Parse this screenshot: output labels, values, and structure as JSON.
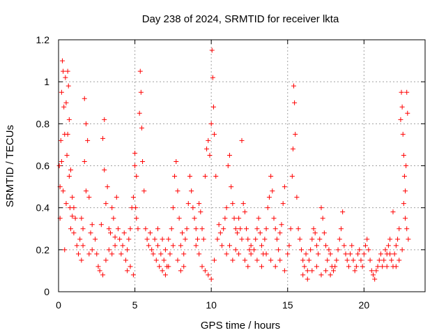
{
  "chart_data": {
    "type": "scatter",
    "title": "Day 238 of 2024, SRMTID for receiver lkta",
    "xlabel": "GPS time / hours",
    "ylabel": "SRMTID / TECUs",
    "xlim": [
      0,
      24
    ],
    "ylim": [
      0,
      1.2
    ],
    "xticks": [
      0,
      5,
      10,
      15,
      20
    ],
    "xtick_labels": [
      "0",
      "5",
      "10",
      "15",
      "20"
    ],
    "yticks": [
      0,
      0.2,
      0.4,
      0.6,
      0.8,
      1.0,
      1.2
    ],
    "ytick_labels": [
      "0",
      "0.2",
      "0.4",
      "0.6",
      "0.8",
      "1",
      "1.2"
    ],
    "grid": true,
    "marker": "+",
    "colors": {
      "series": "#ff0000",
      "grid": "#a0a0a0"
    },
    "series": [
      {
        "name": "SRMTID",
        "points": [
          [
            0.05,
            0.6
          ],
          [
            0.1,
            0.35
          ],
          [
            0.15,
            0.72
          ],
          [
            0.2,
            0.95
          ],
          [
            0.25,
            1.1
          ],
          [
            0.3,
            1.05
          ],
          [
            0.35,
            0.88
          ],
          [
            0.4,
            0.75
          ],
          [
            0.45,
            1.02
          ],
          [
            0.5,
            0.9
          ],
          [
            0.55,
            0.65
          ],
          [
            0.6,
            1.05
          ],
          [
            0.65,
            0.98
          ],
          [
            0.7,
            0.55
          ],
          [
            0.75,
            0.4
          ],
          [
            0.8,
            0.3
          ],
          [
            0.9,
            0.45
          ],
          [
            1.0,
            0.28
          ],
          [
            1.1,
            0.35
          ],
          [
            1.2,
            0.22
          ],
          [
            0.1,
            0.5
          ],
          [
            0.2,
            0.62
          ],
          [
            0.3,
            0.48
          ],
          [
            0.4,
            0.2
          ],
          [
            0.5,
            0.42
          ],
          [
            0.6,
            0.75
          ],
          [
            0.7,
            0.82
          ],
          [
            0.8,
            0.58
          ],
          [
            0.9,
            0.36
          ],
          [
            1.0,
            0.4
          ],
          [
            1.3,
            0.18
          ],
          [
            1.4,
            0.25
          ],
          [
            1.5,
            0.15
          ],
          [
            1.6,
            0.3
          ],
          [
            1.7,
            0.92
          ],
          [
            1.8,
            0.8
          ],
          [
            1.9,
            0.72
          ],
          [
            2.0,
            0.45
          ],
          [
            2.1,
            0.28
          ],
          [
            2.2,
            0.32
          ],
          [
            1.5,
            0.35
          ],
          [
            1.6,
            0.22
          ],
          [
            1.7,
            0.62
          ],
          [
            1.8,
            0.48
          ],
          [
            2.0,
            0.18
          ],
          [
            2.2,
            0.2
          ],
          [
            2.4,
            0.25
          ],
          [
            2.6,
            0.12
          ],
          [
            2.8,
            0.32
          ],
          [
            3.0,
            0.82
          ],
          [
            2.9,
            0.73
          ],
          [
            3.0,
            0.58
          ],
          [
            3.1,
            0.42
          ],
          [
            3.2,
            0.5
          ],
          [
            3.3,
            0.3
          ],
          [
            3.4,
            0.28
          ],
          [
            3.5,
            0.4
          ],
          [
            3.6,
            0.35
          ],
          [
            3.7,
            0.22
          ],
          [
            3.8,
            0.45
          ],
          [
            2.5,
            0.18
          ],
          [
            2.7,
            0.1
          ],
          [
            2.9,
            0.08
          ],
          [
            3.1,
            0.15
          ],
          [
            3.3,
            0.2
          ],
          [
            3.5,
            0.18
          ],
          [
            3.7,
            0.26
          ],
          [
            3.9,
            0.3
          ],
          [
            4.0,
            0.25
          ],
          [
            4.1,
            0.18
          ],
          [
            4.2,
            0.22
          ],
          [
            4.3,
            0.28
          ],
          [
            4.4,
            0.15
          ],
          [
            4.5,
            0.2
          ],
          [
            4.6,
            0.25
          ],
          [
            4.7,
            0.3
          ],
          [
            4.8,
            0.4
          ],
          [
            4.9,
            0.45
          ],
          [
            5.0,
            0.6
          ],
          [
            5.1,
            0.55
          ],
          [
            4.5,
            0.1
          ],
          [
            4.7,
            0.12
          ],
          [
            4.9,
            0.08
          ],
          [
            5.0,
            0.66
          ],
          [
            5.05,
            0.4
          ],
          [
            5.1,
            0.35
          ],
          [
            5.2,
            0.3
          ],
          [
            5.3,
            0.85
          ],
          [
            5.35,
            1.05
          ],
          [
            5.4,
            0.95
          ],
          [
            5.45,
            0.78
          ],
          [
            5.5,
            0.62
          ],
          [
            5.6,
            0.48
          ],
          [
            5.7,
            0.3
          ],
          [
            5.8,
            0.25
          ],
          [
            5.9,
            0.22
          ],
          [
            6.0,
            0.28
          ],
          [
            6.1,
            0.2
          ],
          [
            6.2,
            0.18
          ],
          [
            6.3,
            0.25
          ],
          [
            6.4,
            0.15
          ],
          [
            6.5,
            0.22
          ],
          [
            6.6,
            0.12
          ],
          [
            6.7,
            0.18
          ],
          [
            6.8,
            0.1
          ],
          [
            6.9,
            0.15
          ],
          [
            7.0,
            0.2
          ],
          [
            7.1,
            0.12
          ],
          [
            7.2,
            0.25
          ],
          [
            7.3,
            0.18
          ],
          [
            7.4,
            0.3
          ],
          [
            7.5,
            0.4
          ],
          [
            7.6,
            0.55
          ],
          [
            7.7,
            0.62
          ],
          [
            7.8,
            0.48
          ],
          [
            7.9,
            0.35
          ],
          [
            8.0,
            0.22
          ],
          [
            8.1,
            0.28
          ],
          [
            8.2,
            0.18
          ],
          [
            8.3,
            0.25
          ],
          [
            6.5,
            0.3
          ],
          [
            6.8,
            0.25
          ],
          [
            7.0,
            0.08
          ],
          [
            7.2,
            0.12
          ],
          [
            7.5,
            0.22
          ],
          [
            7.8,
            0.15
          ],
          [
            8.0,
            0.1
          ],
          [
            8.2,
            0.12
          ],
          [
            8.4,
            0.3
          ],
          [
            8.5,
            0.42
          ],
          [
            8.6,
            0.55
          ],
          [
            8.7,
            0.48
          ],
          [
            8.8,
            0.4
          ],
          [
            8.9,
            0.35
          ],
          [
            9.0,
            0.3
          ],
          [
            9.1,
            0.25
          ],
          [
            9.2,
            0.42
          ],
          [
            9.3,
            0.38
          ],
          [
            9.4,
            0.3
          ],
          [
            9.5,
            0.25
          ],
          [
            9.6,
            0.55
          ],
          [
            9.7,
            0.68
          ],
          [
            9.8,
            0.72
          ],
          [
            9.9,
            0.65
          ],
          [
            10.0,
            0.8
          ],
          [
            10.05,
            1.15
          ],
          [
            10.1,
            1.02
          ],
          [
            10.15,
            0.88
          ],
          [
            10.2,
            0.75
          ],
          [
            10.3,
            0.55
          ],
          [
            9.0,
            0.22
          ],
          [
            9.2,
            0.18
          ],
          [
            9.4,
            0.12
          ],
          [
            9.6,
            0.1
          ],
          [
            9.8,
            0.08
          ],
          [
            10.0,
            0.06
          ],
          [
            10.2,
            0.15
          ],
          [
            10.4,
            0.25
          ],
          [
            10.5,
            0.32
          ],
          [
            10.6,
            0.28
          ],
          [
            10.7,
            0.22
          ],
          [
            10.8,
            0.3
          ],
          [
            10.9,
            0.35
          ],
          [
            11.0,
            0.4
          ],
          [
            11.1,
            0.6
          ],
          [
            11.2,
            0.65
          ],
          [
            11.3,
            0.5
          ],
          [
            11.4,
            0.42
          ],
          [
            11.5,
            0.35
          ],
          [
            11.6,
            0.3
          ],
          [
            11.7,
            0.28
          ],
          [
            11.8,
            0.35
          ],
          [
            11.9,
            0.3
          ],
          [
            12.0,
            0.72
          ],
          [
            12.1,
            0.42
          ],
          [
            12.2,
            0.38
          ],
          [
            12.3,
            0.3
          ],
          [
            12.4,
            0.25
          ],
          [
            12.5,
            0.2
          ],
          [
            12.6,
            0.22
          ],
          [
            11.0,
            0.18
          ],
          [
            11.2,
            0.22
          ],
          [
            11.4,
            0.15
          ],
          [
            11.6,
            0.2
          ],
          [
            11.8,
            0.18
          ],
          [
            12.0,
            0.25
          ],
          [
            12.2,
            0.15
          ],
          [
            12.4,
            0.12
          ],
          [
            12.6,
            0.18
          ],
          [
            12.8,
            0.2
          ],
          [
            12.9,
            0.25
          ],
          [
            13.0,
            0.3
          ],
          [
            13.1,
            0.35
          ],
          [
            13.2,
            0.28
          ],
          [
            13.3,
            0.22
          ],
          [
            13.4,
            0.18
          ],
          [
            13.5,
            0.25
          ],
          [
            13.6,
            0.3
          ],
          [
            13.7,
            0.4
          ],
          [
            13.8,
            0.45
          ],
          [
            13.9,
            0.55
          ],
          [
            14.0,
            0.48
          ],
          [
            14.1,
            0.35
          ],
          [
            14.2,
            0.3
          ],
          [
            14.3,
            0.25
          ],
          [
            14.4,
            0.2
          ],
          [
            14.5,
            0.28
          ],
          [
            14.6,
            0.32
          ],
          [
            14.7,
            0.42
          ],
          [
            14.8,
            0.5
          ],
          [
            13.0,
            0.15
          ],
          [
            13.3,
            0.12
          ],
          [
            13.6,
            0.18
          ],
          [
            13.9,
            0.15
          ],
          [
            14.2,
            0.12
          ],
          [
            14.5,
            0.15
          ],
          [
            14.8,
            0.1
          ],
          [
            15.0,
            0.18
          ],
          [
            15.1,
            0.22
          ],
          [
            15.2,
            0.3
          ],
          [
            15.3,
            0.55
          ],
          [
            15.35,
            0.68
          ],
          [
            15.4,
            0.98
          ],
          [
            15.45,
            0.9
          ],
          [
            15.5,
            0.75
          ],
          [
            15.6,
            0.45
          ],
          [
            15.7,
            0.3
          ],
          [
            15.8,
            0.25
          ],
          [
            15.9,
            0.2
          ],
          [
            16.0,
            0.15
          ],
          [
            16.1,
            0.12
          ],
          [
            16.2,
            0.18
          ],
          [
            16.3,
            0.1
          ],
          [
            16.4,
            0.15
          ],
          [
            16.5,
            0.2
          ],
          [
            16.6,
            0.25
          ],
          [
            16.7,
            0.3
          ],
          [
            16.8,
            0.28
          ],
          [
            16.9,
            0.22
          ],
          [
            17.0,
            0.18
          ],
          [
            17.1,
            0.25
          ],
          [
            17.2,
            0.4
          ],
          [
            17.3,
            0.35
          ],
          [
            17.4,
            0.28
          ],
          [
            17.5,
            0.22
          ],
          [
            17.6,
            0.15
          ],
          [
            17.7,
            0.2
          ],
          [
            17.8,
            0.18
          ],
          [
            17.9,
            0.12
          ],
          [
            18.0,
            0.1
          ],
          [
            16.0,
            0.08
          ],
          [
            16.3,
            0.06
          ],
          [
            16.6,
            0.1
          ],
          [
            16.9,
            0.12
          ],
          [
            17.2,
            0.08
          ],
          [
            17.5,
            0.1
          ],
          [
            17.8,
            0.08
          ],
          [
            18.1,
            0.12
          ],
          [
            18.2,
            0.15
          ],
          [
            18.3,
            0.2
          ],
          [
            18.4,
            0.25
          ],
          [
            18.5,
            0.3
          ],
          [
            18.6,
            0.38
          ],
          [
            18.7,
            0.22
          ],
          [
            18.8,
            0.18
          ],
          [
            18.9,
            0.15
          ],
          [
            19.0,
            0.12
          ],
          [
            19.1,
            0.18
          ],
          [
            19.2,
            0.22
          ],
          [
            19.3,
            0.15
          ],
          [
            19.4,
            0.1
          ],
          [
            19.5,
            0.12
          ],
          [
            19.6,
            0.18
          ],
          [
            19.7,
            0.2
          ],
          [
            19.8,
            0.15
          ],
          [
            19.9,
            0.12
          ],
          [
            20.0,
            0.18
          ],
          [
            20.1,
            0.22
          ],
          [
            20.2,
            0.25
          ],
          [
            20.3,
            0.2
          ],
          [
            20.4,
            0.15
          ],
          [
            20.5,
            0.1
          ],
          [
            20.6,
            0.08
          ],
          [
            20.7,
            0.06
          ],
          [
            20.8,
            0.1
          ],
          [
            20.9,
            0.12
          ],
          [
            21.0,
            0.15
          ],
          [
            21.1,
            0.18
          ],
          [
            21.2,
            0.12
          ],
          [
            21.3,
            0.15
          ],
          [
            21.4,
            0.2
          ],
          [
            21.5,
            0.18
          ],
          [
            21.6,
            0.22
          ],
          [
            21.7,
            0.25
          ],
          [
            21.8,
            0.15
          ],
          [
            21.9,
            0.12
          ],
          [
            22.0,
            0.18
          ],
          [
            22.1,
            0.22
          ],
          [
            22.2,
            0.25
          ],
          [
            22.3,
            0.3
          ],
          [
            22.4,
            0.82
          ],
          [
            22.45,
            0.95
          ],
          [
            22.5,
            0.88
          ],
          [
            22.55,
            0.75
          ],
          [
            22.6,
            0.65
          ],
          [
            22.65,
            0.55
          ],
          [
            22.7,
            0.48
          ],
          [
            22.75,
            0.6
          ],
          [
            22.8,
            0.95
          ],
          [
            22.85,
            0.85
          ],
          [
            22.6,
            0.42
          ],
          [
            22.7,
            0.35
          ],
          [
            22.8,
            0.3
          ],
          [
            22.9,
            0.25
          ],
          [
            22.5,
            0.2
          ],
          [
            22.3,
            0.15
          ],
          [
            22.1,
            0.12
          ],
          [
            21.9,
            0.38
          ],
          [
            21.7,
            0.18
          ],
          [
            21.5,
            0.12
          ]
        ]
      }
    ]
  }
}
